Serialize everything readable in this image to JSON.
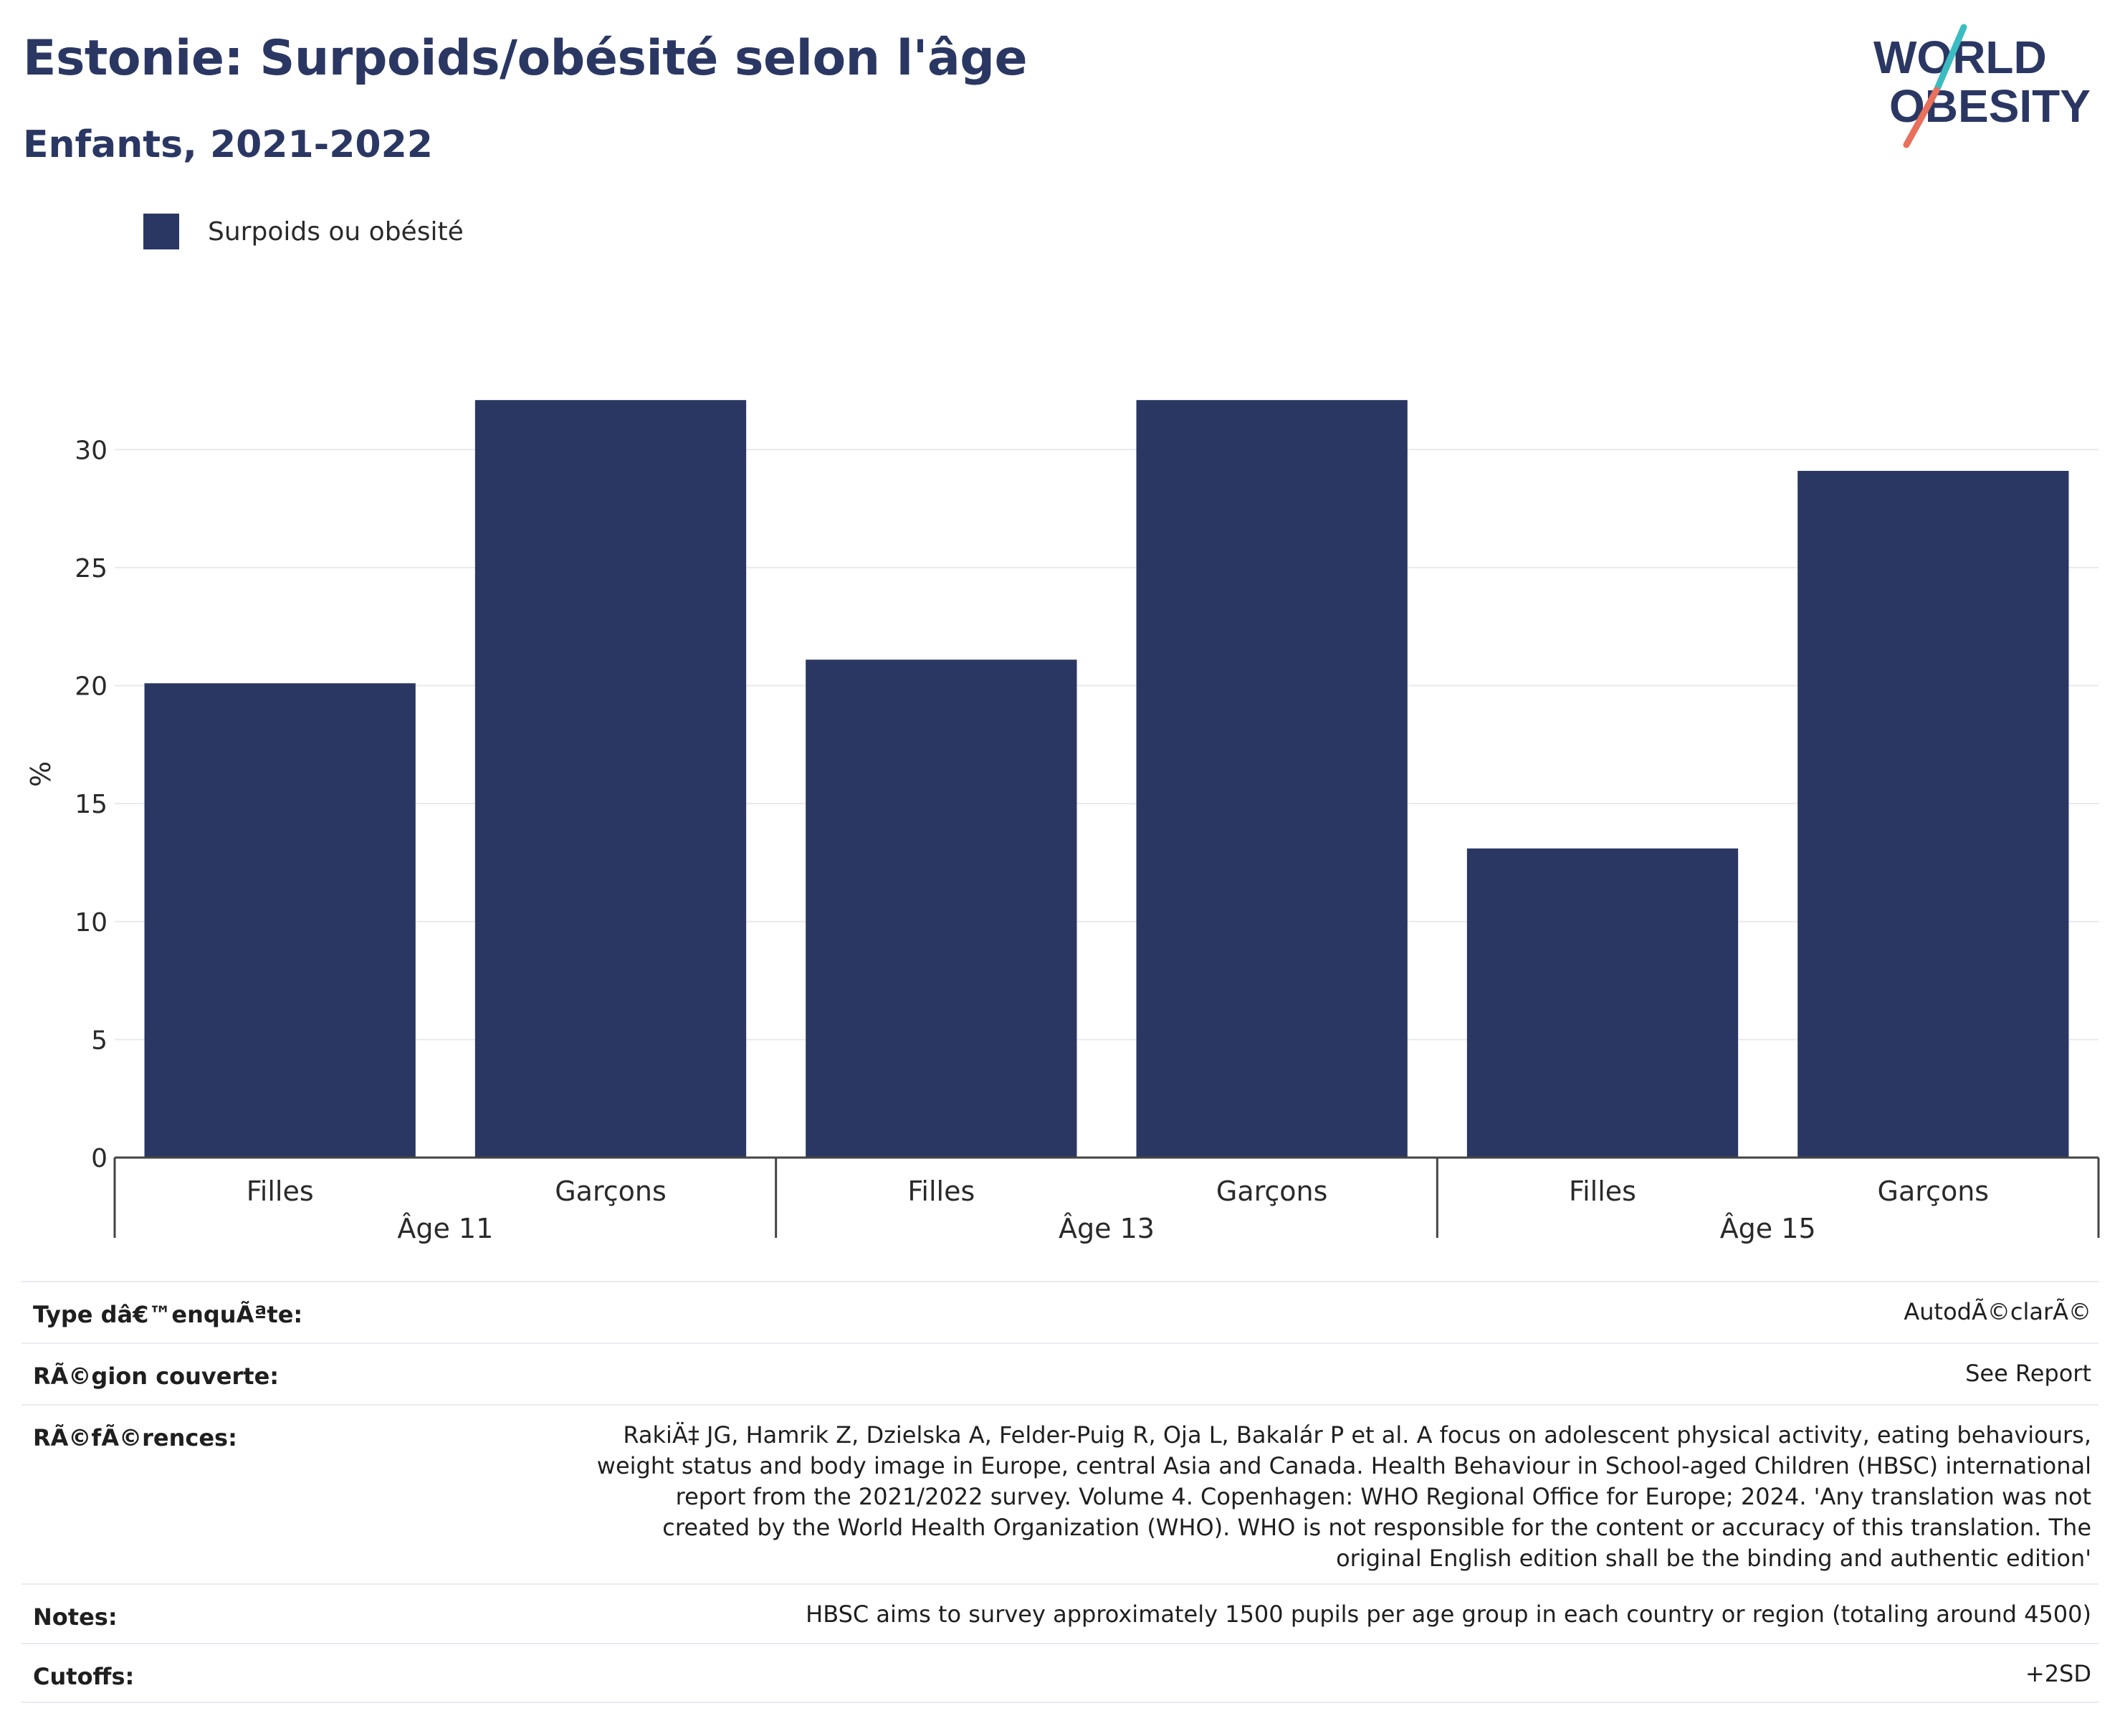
{
  "header": {
    "title": "Estonie: Surpoids/obésité selon l'âge",
    "subtitle": "Enfants, 2021-2022"
  },
  "logo": {
    "line1": "WORLD",
    "line2": "OBESITY",
    "colors": {
      "text": "#2b3763",
      "slash_top": "#3bbcc1",
      "slash_bottom": "#e8705c"
    }
  },
  "legend": {
    "label": "Surpoids ou obésité",
    "color": "#2b3763"
  },
  "chart_data": {
    "type": "bar",
    "ylabel": "%",
    "ylim": [
      0,
      32.5
    ],
    "yticks": [
      0,
      5,
      10,
      15,
      20,
      25,
      30
    ],
    "grid": true,
    "bar_color": "#2b3763",
    "groups": [
      {
        "label": "Âge 11",
        "categories": [
          "Filles",
          "Garçons"
        ],
        "values": [
          20.1,
          32.1
        ]
      },
      {
        "label": "Âge 13",
        "categories": [
          "Filles",
          "Garçons"
        ],
        "values": [
          21.1,
          32.1
        ]
      },
      {
        "label": "Âge 15",
        "categories": [
          "Filles",
          "Garçons"
        ],
        "values": [
          13.1,
          29.1
        ]
      }
    ]
  },
  "meta": {
    "rows": [
      {
        "label": "Type dâ€™enquÃªte:",
        "value": "AutodÃ©clarÃ©"
      },
      {
        "label": "RÃ©gion couverte:",
        "value": "See Report"
      },
      {
        "label": "RÃ©fÃ©rences:",
        "value": "RakiÄ‡ JG, Hamrik Z, Dzielska A, Felder-Puig R, Oja L, Bakalár P et al. A focus on adolescent physical activity, eating behaviours, weight status and body image in Europe, central Asia and Canada. Health Behaviour in School-aged Children (HBSC) international report from the 2021/2022 survey. Volume 4. Copenhagen: WHO Regional Office for Europe; 2024. 'Any translation was not created by the World Health Organization (WHO). WHO is not responsible for the content or accuracy of this translation. The original English edition shall be the binding and authentic edition'"
      },
      {
        "label": "Notes:",
        "value": "HBSC aims to survey approximately 1500 pupils per age group in each country or region (totaling around 4500)"
      },
      {
        "label": "Cutoffs:",
        "value": "+2SD"
      }
    ]
  }
}
